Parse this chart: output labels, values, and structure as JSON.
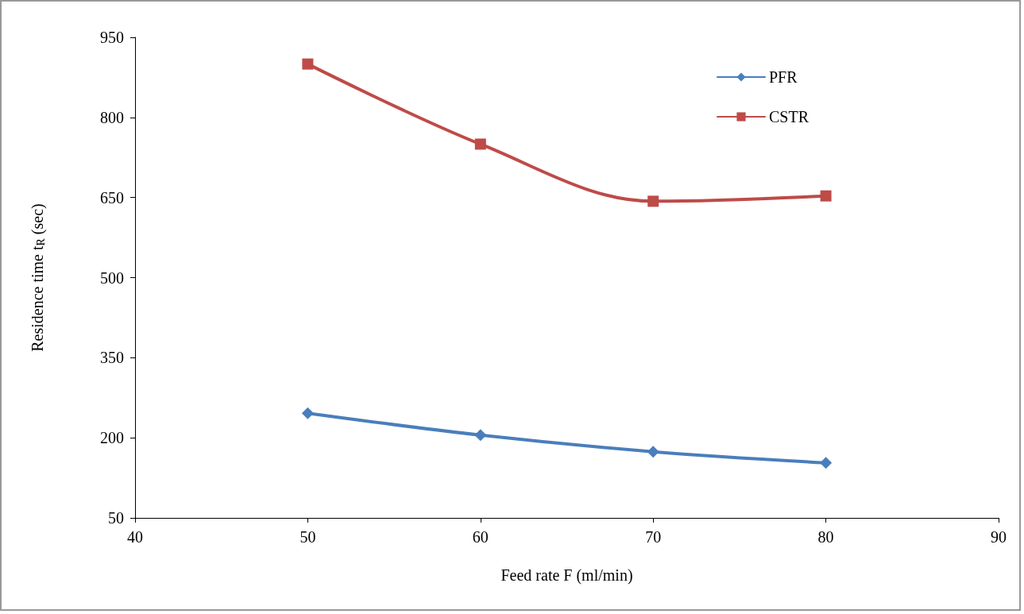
{
  "chart_data": {
    "type": "line",
    "xlabel": "Feed rate F (ml/min)",
    "ylabel": "Residence time t$_{R}$ (sec)",
    "x": [
      50,
      60,
      70,
      80
    ],
    "series": [
      {
        "name": "PFR",
        "color": "#4a7ebb",
        "marker": "diamond",
        "values": [
          246,
          205,
          174,
          153
        ]
      },
      {
        "name": "CSTR",
        "color": "#be4b48",
        "marker": "square",
        "values": [
          900,
          750,
          643,
          653
        ]
      }
    ],
    "xlim": [
      40,
      90
    ],
    "xticks": [
      40,
      50,
      60,
      70,
      80,
      90
    ],
    "ylim": [
      50,
      950
    ],
    "yticks": [
      50,
      200,
      350,
      500,
      650,
      800,
      950
    ],
    "grid": false,
    "legend": "top right",
    "line_style": "solid"
  }
}
